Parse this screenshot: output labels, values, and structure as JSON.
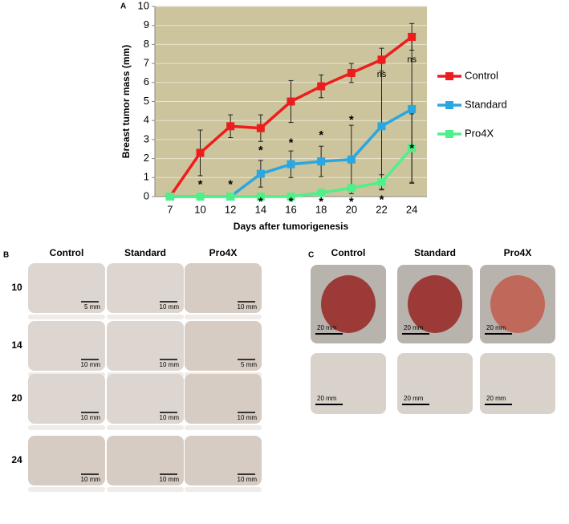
{
  "chart_data": {
    "type": "line",
    "panel_label": "A",
    "y_label": "Breast tumor mass (mm)",
    "x_label": "Days after tumorigenesis",
    "categories": [
      "7",
      "10",
      "12",
      "14",
      "16",
      "18",
      "20",
      "22",
      "24"
    ],
    "ylim": [
      0,
      10
    ],
    "yticks": [
      0,
      1,
      2,
      3,
      4,
      5,
      6,
      7,
      8,
      9,
      10
    ],
    "grid": true,
    "series": [
      {
        "name": "Control",
        "color": "#ee1c1c",
        "values": [
          0,
          2.3,
          3.7,
          3.6,
          5.0,
          5.8,
          6.5,
          7.2,
          8.4
        ],
        "errors": [
          0,
          1.2,
          0.6,
          0.7,
          1.1,
          0.6,
          0.5,
          0.6,
          0.7
        ]
      },
      {
        "name": "Standard",
        "color": "#2aa7e0",
        "values": [
          0,
          0,
          0,
          1.2,
          1.7,
          1.85,
          1.95,
          3.7,
          4.6
        ],
        "errors": [
          0,
          0,
          0,
          0.7,
          0.7,
          0.8,
          1.8,
          3.3,
          3.9
        ]
      },
      {
        "name": "Pro4X",
        "color": "#4ef08a",
        "values": [
          0,
          0,
          0,
          0,
          0,
          0.2,
          0.45,
          0.75,
          2.55
        ],
        "errors": [
          0,
          0,
          0,
          0,
          0,
          0,
          0,
          0.4,
          1.8
        ]
      }
    ],
    "legend": "right",
    "annotations": [
      {
        "text": "*",
        "x": "10",
        "y": 0.6
      },
      {
        "text": "*",
        "x": "12",
        "y": 0.6
      },
      {
        "text": "*",
        "x": "14",
        "y": 2.4
      },
      {
        "text": "*",
        "x": "14",
        "y": -0.3
      },
      {
        "text": "*",
        "x": "16",
        "y": 2.8
      },
      {
        "text": "*",
        "x": "16",
        "y": -0.3
      },
      {
        "text": "*",
        "x": "18",
        "y": 3.2
      },
      {
        "text": "*",
        "x": "18",
        "y": -0.3
      },
      {
        "text": "*",
        "x": "20",
        "y": 4.0
      },
      {
        "text": "*",
        "x": "20",
        "y": -0.3
      },
      {
        "text": "ns",
        "x": "22",
        "y": 6.4
      },
      {
        "text": "*",
        "x": "22",
        "y": -0.2
      },
      {
        "text": "ns",
        "x": "24",
        "y": 7.2
      },
      {
        "text": "*",
        "x": "24",
        "y": 2.5
      }
    ]
  },
  "panel_b": {
    "label": "B",
    "columns": [
      "Control",
      "Standard",
      "Pro4X"
    ],
    "rows": [
      "10",
      "14",
      "20",
      "24"
    ],
    "scale_bars": [
      [
        "5 mm",
        "10 mm",
        "10 mm"
      ],
      [
        "10 mm",
        "10 mm",
        "5 mm"
      ],
      [
        "10 mm",
        "10 mm",
        "10 mm"
      ],
      [
        "10 mm",
        "10 mm",
        "10 mm"
      ]
    ]
  },
  "panel_c": {
    "label": "C",
    "columns": [
      "Control",
      "Standard",
      "Pro4X"
    ],
    "scale_bars": [
      [
        "20 mm",
        "20 mm",
        "20 mm"
      ],
      [
        "20 mm",
        "20 mm",
        "20 mm"
      ]
    ]
  }
}
